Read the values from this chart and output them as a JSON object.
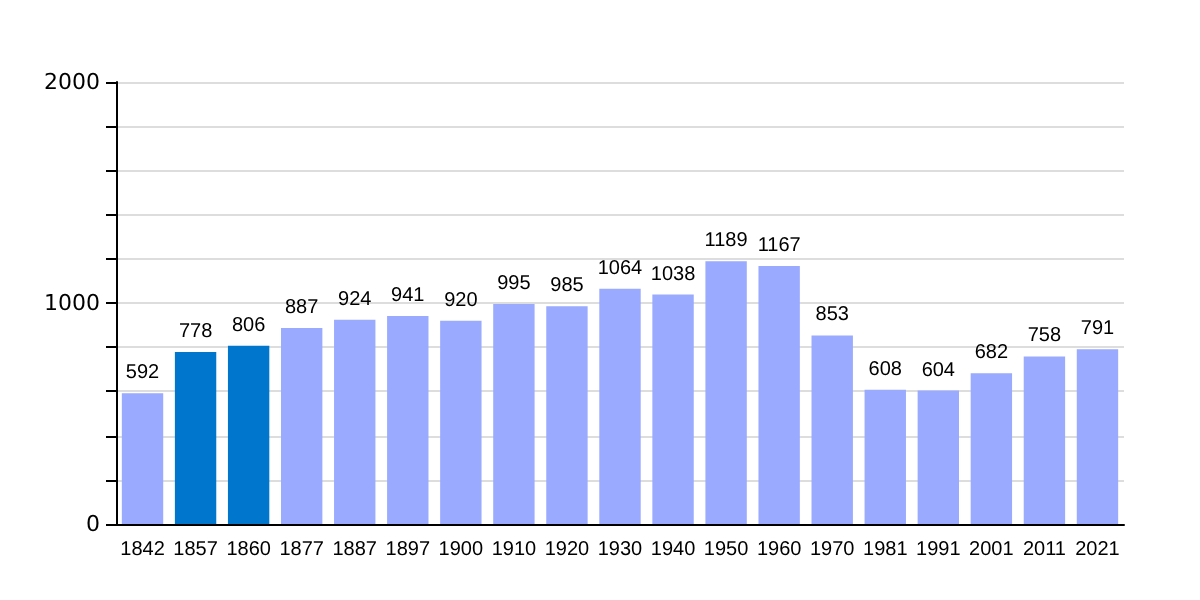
{
  "chart_data": {
    "type": "bar",
    "categories": [
      "1842",
      "1857",
      "1860",
      "1877",
      "1887",
      "1897",
      "1900",
      "1910",
      "1920",
      "1930",
      "1940",
      "1950",
      "1960",
      "1970",
      "1981",
      "1991",
      "2001",
      "2011",
      "2021"
    ],
    "values": [
      592,
      778,
      806,
      887,
      924,
      941,
      920,
      995,
      985,
      1064,
      1038,
      1189,
      1167,
      853,
      608,
      604,
      682,
      758,
      791
    ],
    "colors": [
      "#99aaff",
      "#0077cc",
      "#0077cc",
      "#99aaff",
      "#99aaff",
      "#99aaff",
      "#99aaff",
      "#99aaff",
      "#99aaff",
      "#99aaff",
      "#99aaff",
      "#99aaff",
      "#99aaff",
      "#99aaff",
      "#99aaff",
      "#99aaff",
      "#99aaff",
      "#99aaff",
      "#99aaff"
    ],
    "ylim": [
      0,
      2000
    ],
    "yticks": [
      0,
      {
        "value": 200,
        "label": null
      },
      {
        "value": 400,
        "label": null
      },
      {
        "value": 600,
        "label": null
      },
      {
        "value": 800,
        "label": null
      },
      1000,
      {
        "value": 1200,
        "label": null
      },
      {
        "value": 1400,
        "label": null
      },
      {
        "value": 1600,
        "label": null
      },
      {
        "value": 1800,
        "label": null
      },
      2000
    ],
    "grid": "y",
    "data_labels": true
  }
}
